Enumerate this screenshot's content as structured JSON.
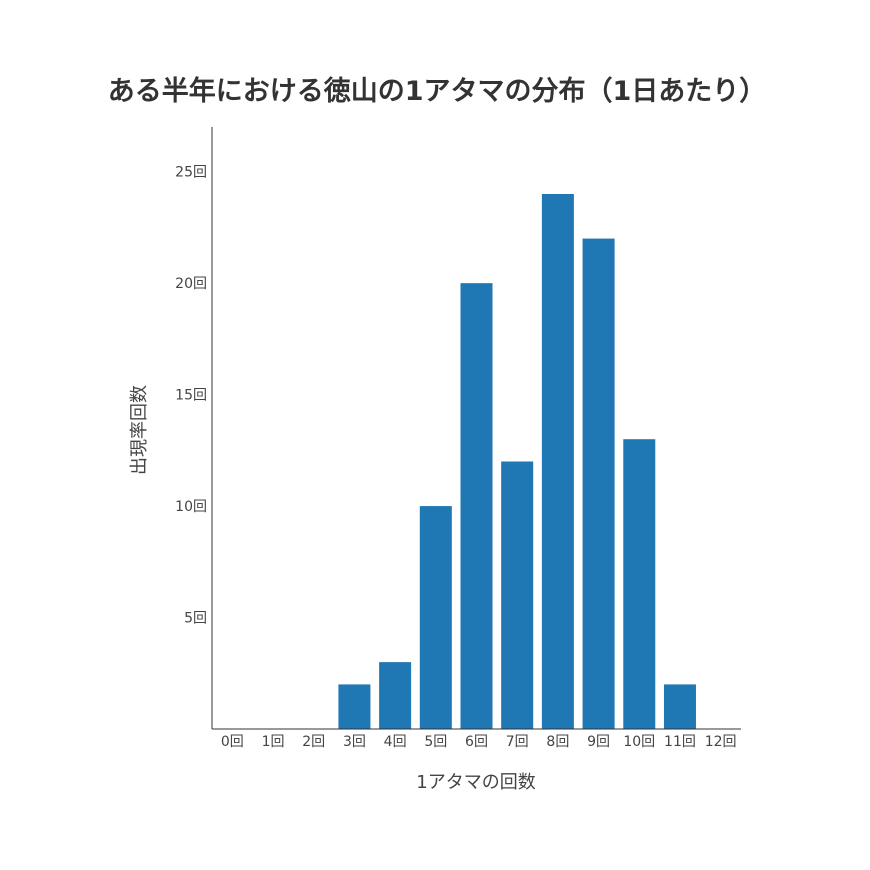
{
  "chart_data": {
    "type": "bar",
    "title": "ある半年における徳山の1アタマの分布（1日あたり）",
    "xlabel": "1アタマの回数",
    "ylabel": "出現率回数",
    "categories": [
      "0回",
      "1回",
      "2回",
      "3回",
      "4回",
      "5回",
      "6回",
      "7回",
      "8回",
      "9回",
      "10回",
      "11回",
      "12回"
    ],
    "values": [
      0,
      0,
      0,
      2,
      3,
      10,
      20,
      12,
      24,
      22,
      13,
      2,
      0
    ],
    "y_ticks": [
      5,
      10,
      15,
      20,
      25
    ],
    "y_tick_labels": [
      "5回",
      "10回",
      "15回",
      "20回",
      "25回"
    ],
    "ylim": [
      0,
      27
    ],
    "grid": false,
    "legend": "none",
    "bar_color": "#1f77b4"
  }
}
